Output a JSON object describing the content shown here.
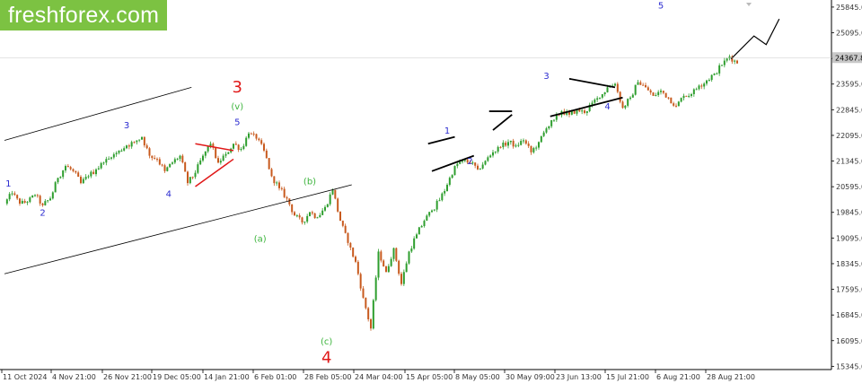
{
  "brand": {
    "name": "freshforex.com",
    "color": "#7cc242"
  },
  "colors": {
    "up": "#2e9e2e",
    "down": "#c85a1e",
    "wave_blue": "#2b2bd0",
    "wave_green": "#3cb43c",
    "wave_red": "#e01818",
    "trendline": "#000000",
    "triangle_red": "#e01818"
  },
  "chart_data": {
    "type": "candlestick",
    "title": "",
    "xlabel": "",
    "ylabel": "",
    "ylim": [
      15250,
      26000
    ],
    "grid": false,
    "current_price": "24367.8",
    "y_ticks": [
      "25845.0",
      "25095.0",
      "24345.0",
      "23595.0",
      "22845.0",
      "22095.0",
      "21345.0",
      "20595.0",
      "19845.0",
      "19095.0",
      "18345.0",
      "17595.0",
      "16845.0",
      "16095.0",
      "15345.0"
    ],
    "x_ticks": [
      "11 Oct 2024",
      "4 Nov 21:00",
      "26 Nov 21:00",
      "19 Dec 05:00",
      "14 Jan 21:00",
      "6 Feb 01:00",
      "28 Feb 05:00",
      "24 Mar 04:00",
      "15 Apr 05:00",
      "8 May 05:00",
      "30 May 09:00",
      "23 Jun 13:00",
      "15 Jul 21:00",
      "6 Aug 21:00",
      "28 Aug 21:00"
    ],
    "price_path": [
      [
        0,
        20100
      ],
      [
        1,
        20400
      ],
      [
        2,
        20100
      ],
      [
        3,
        20150
      ],
      [
        4,
        20350
      ],
      [
        5,
        20050
      ],
      [
        6,
        20250
      ],
      [
        7,
        20850
      ],
      [
        8,
        21200
      ],
      [
        9,
        21050
      ],
      [
        10,
        20700
      ],
      [
        11,
        20900
      ],
      [
        12,
        21100
      ],
      [
        13,
        21300
      ],
      [
        14,
        21450
      ],
      [
        15,
        21650
      ],
      [
        16,
        21800
      ],
      [
        17,
        21900
      ],
      [
        18,
        22050
      ],
      [
        19,
        21500
      ],
      [
        20,
        21400
      ],
      [
        21,
        21050
      ],
      [
        22,
        21300
      ],
      [
        23,
        21500
      ],
      [
        24,
        20700
      ],
      [
        25,
        21000
      ],
      [
        26,
        21500
      ],
      [
        27,
        21850
      ],
      [
        28,
        21300
      ],
      [
        29,
        21550
      ],
      [
        30,
        21850
      ],
      [
        31,
        21700
      ],
      [
        32,
        22150
      ],
      [
        33,
        22000
      ],
      [
        34,
        21650
      ],
      [
        35,
        20900
      ],
      [
        36,
        20550
      ],
      [
        37,
        20250
      ],
      [
        38,
        19750
      ],
      [
        39,
        19550
      ],
      [
        40,
        19850
      ],
      [
        41,
        19700
      ],
      [
        42,
        20000
      ],
      [
        43,
        20500
      ],
      [
        44,
        19600
      ],
      [
        45,
        18950
      ],
      [
        46,
        18400
      ],
      [
        47,
        17350
      ],
      [
        48,
        16450
      ],
      [
        49,
        18700
      ],
      [
        50,
        18100
      ],
      [
        51,
        18800
      ],
      [
        52,
        17750
      ],
      [
        53,
        18700
      ],
      [
        54,
        19200
      ],
      [
        55,
        19600
      ],
      [
        56,
        19900
      ],
      [
        57,
        20200
      ],
      [
        58,
        20650
      ],
      [
        59,
        21200
      ],
      [
        60,
        21350
      ],
      [
        61,
        21300
      ],
      [
        62,
        21100
      ],
      [
        63,
        21350
      ],
      [
        64,
        21600
      ],
      [
        65,
        21750
      ],
      [
        66,
        21900
      ],
      [
        67,
        21800
      ],
      [
        68,
        21950
      ],
      [
        69,
        21600
      ],
      [
        70,
        21900
      ],
      [
        71,
        22300
      ],
      [
        72,
        22550
      ],
      [
        73,
        22800
      ],
      [
        74,
        22700
      ],
      [
        75,
        22850
      ],
      [
        76,
        22750
      ],
      [
        77,
        23050
      ],
      [
        78,
        23200
      ],
      [
        79,
        23500
      ],
      [
        80,
        23600
      ],
      [
        81,
        22900
      ],
      [
        82,
        23200
      ],
      [
        83,
        23650
      ],
      [
        84,
        23500
      ],
      [
        85,
        23250
      ],
      [
        86,
        23400
      ],
      [
        87,
        23200
      ],
      [
        88,
        22950
      ],
      [
        89,
        23250
      ],
      [
        90,
        23300
      ],
      [
        91,
        23550
      ],
      [
        92,
        23700
      ],
      [
        93,
        23900
      ],
      [
        94,
        24150
      ],
      [
        95,
        24400
      ],
      [
        96,
        24200
      ]
    ],
    "projection": [
      [
        95.2,
        24330
      ],
      [
        98.2,
        25000
      ],
      [
        99.8,
        24750
      ],
      [
        101.5,
        25500
      ]
    ],
    "annotations": [
      {
        "label": "1",
        "style": "blue",
        "x": 0.5,
        "y": 20600
      },
      {
        "label": "2",
        "style": "blue",
        "x": 5,
        "y": 19750
      },
      {
        "label": "3",
        "style": "blue",
        "x": 16,
        "y": 22300
      },
      {
        "label": "4",
        "style": "blue",
        "x": 21.5,
        "y": 20300
      },
      {
        "label": "5",
        "style": "blue",
        "x": 30.5,
        "y": 22400
      },
      {
        "label": "(v)",
        "style": "green",
        "x": 30.5,
        "y": 22850
      },
      {
        "label": "3",
        "style": "red",
        "x": 30.5,
        "y": 23350
      },
      {
        "label": "(a)",
        "style": "green",
        "x": 33.5,
        "y": 18980
      },
      {
        "label": "(b)",
        "style": "green",
        "x": 40,
        "y": 20670
      },
      {
        "label": "(c)",
        "style": "green",
        "x": 42.2,
        "y": 15980
      },
      {
        "label": "4",
        "style": "red",
        "x": 42.2,
        "y": 15450
      },
      {
        "label": "1",
        "style": "blue",
        "x": 58,
        "y": 22150
      },
      {
        "label": "2",
        "style": "blue",
        "x": 61,
        "y": 21250
      },
      {
        "label": "3",
        "style": "blue",
        "x": 71,
        "y": 23750
      },
      {
        "label": "4",
        "style": "blue",
        "x": 79,
        "y": 22850
      },
      {
        "label": "5",
        "style": "blue",
        "x": 86,
        "y": 25800
      }
    ],
    "lines": [
      {
        "style": "trend",
        "from": [
          0,
          21950
        ],
        "to": [
          24.5,
          23500
        ]
      },
      {
        "style": "trend",
        "from": [
          0,
          18050
        ],
        "to": [
          45.5,
          20650
        ]
      },
      {
        "style": "red",
        "from": [
          25,
          21850
        ],
        "to": [
          30,
          21650
        ]
      },
      {
        "style": "red",
        "from": [
          25,
          20600
        ],
        "to": [
          30,
          21400
        ]
      },
      {
        "style": "bold",
        "from": [
          55.5,
          21850
        ],
        "to": [
          59,
          22050
        ]
      },
      {
        "style": "bold",
        "from": [
          56,
          21050
        ],
        "to": [
          61.5,
          21500
        ]
      },
      {
        "style": "bold",
        "from": [
          63.5,
          22800
        ],
        "to": [
          66.5,
          22800
        ]
      },
      {
        "style": "bold",
        "from": [
          64,
          22250
        ],
        "to": [
          66.5,
          22700
        ]
      },
      {
        "style": "bold",
        "from": [
          74,
          23750
        ],
        "to": [
          80,
          23500
        ]
      },
      {
        "style": "bold",
        "from": [
          71.5,
          22650
        ],
        "to": [
          81,
          23200
        ]
      }
    ]
  }
}
